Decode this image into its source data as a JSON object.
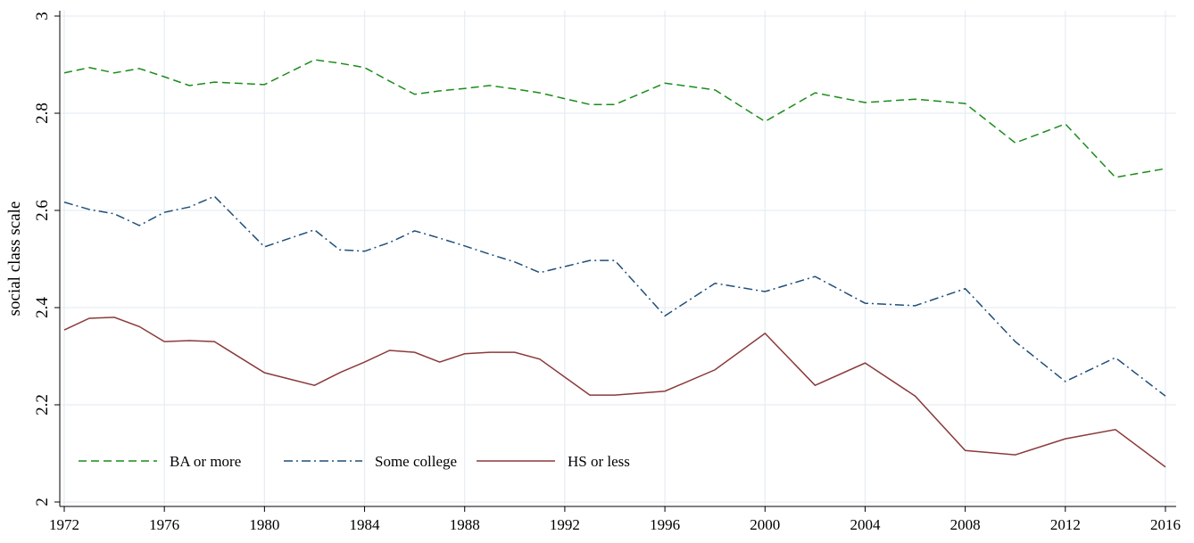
{
  "chart_data": {
    "type": "line",
    "y_label": "social class scale",
    "x": [
      1972,
      1973,
      1974,
      1975,
      1976,
      1977,
      1978,
      1980,
      1982,
      1983,
      1984,
      1985,
      1986,
      1987,
      1988,
      1989,
      1990,
      1991,
      1993,
      1994,
      1996,
      1998,
      2000,
      2002,
      2004,
      2006,
      2008,
      2010,
      2012,
      2014,
      2016
    ],
    "series": [
      {
        "name": "BA or more",
        "color": "#1a8c1a",
        "dash": "9,5",
        "values": [
          2.883,
          2.894,
          2.883,
          2.892,
          2.875,
          2.857,
          2.864,
          2.859,
          2.91,
          2.903,
          2.894,
          2.866,
          2.839,
          2.846,
          2.851,
          2.857,
          2.85,
          2.842,
          2.818,
          2.818,
          2.862,
          2.848,
          2.783,
          2.842,
          2.822,
          2.829,
          2.82,
          2.739,
          2.778,
          2.668,
          2.686
        ]
      },
      {
        "name": "Some college",
        "color": "#1f4e79",
        "dash": "10,4,2,4",
        "values": [
          2.617,
          2.602,
          2.593,
          2.569,
          2.596,
          2.607,
          2.629,
          2.525,
          2.56,
          2.519,
          2.516,
          2.534,
          2.558,
          2.543,
          2.527,
          2.51,
          2.494,
          2.472,
          2.497,
          2.497,
          2.383,
          2.45,
          2.433,
          2.464,
          2.409,
          2.404,
          2.439,
          2.33,
          2.248,
          2.297,
          2.218
        ]
      },
      {
        "name": "HS or less",
        "color": "#8b3a3a",
        "dash": "none",
        "values": [
          2.354,
          2.378,
          2.38,
          2.361,
          2.33,
          2.332,
          2.33,
          2.266,
          2.24,
          2.266,
          2.288,
          2.312,
          2.308,
          2.288,
          2.305,
          2.308,
          2.308,
          2.294,
          2.22,
          2.22,
          2.228,
          2.272,
          2.347,
          2.24,
          2.286,
          2.218,
          2.106,
          2.097,
          2.13,
          2.149,
          2.072
        ]
      }
    ],
    "xlim": [
      1972,
      2016
    ],
    "xticks": [
      1972,
      1976,
      1980,
      1984,
      1988,
      1992,
      1996,
      2000,
      2004,
      2008,
      2012,
      2016
    ],
    "ylim": [
      2,
      3
    ],
    "yticks": [
      2,
      2.2,
      2.4,
      2.6,
      2.8,
      3
    ],
    "grid": true
  }
}
